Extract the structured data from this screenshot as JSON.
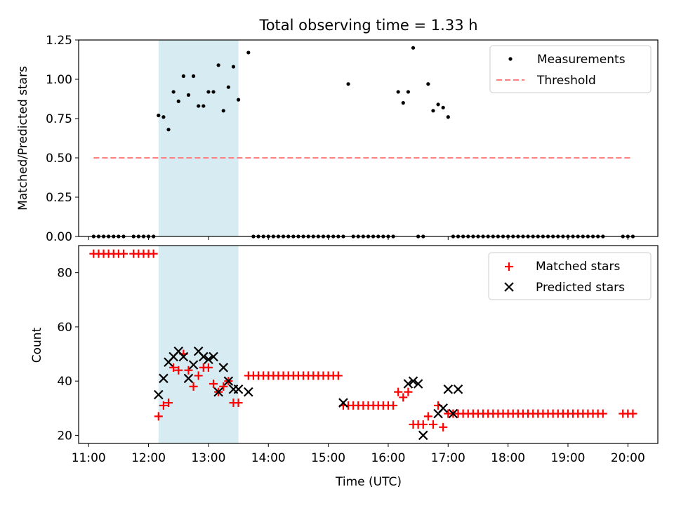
{
  "figure": {
    "title": "Total observing time = 1.33 h"
  },
  "chart_data": [
    {
      "type": "scatter",
      "ylabel": "Matched/Predicted stars",
      "xlim": [
        "10:50",
        "20:30"
      ],
      "ylim": [
        0,
        1.25
      ],
      "y_ticks": [
        0.0,
        0.25,
        0.5,
        0.75,
        1.0,
        1.25
      ],
      "y_tick_labels": [
        "0.00",
        "0.25",
        "0.50",
        "0.75",
        "1.00",
        "1.25"
      ],
      "shaded_interval": [
        "12:10",
        "13:30"
      ],
      "shaded_color": "#add8e6",
      "legend": {
        "position": "upper right",
        "entries": [
          "Measurements",
          "Threshold"
        ]
      },
      "series": [
        {
          "name": "Measurements",
          "color": "#000000",
          "marker": "dot",
          "x": [
            "11:05",
            "11:10",
            "11:15",
            "11:20",
            "11:25",
            "11:30",
            "11:35",
            "11:45",
            "11:50",
            "11:55",
            "12:00",
            "12:05",
            "12:10",
            "12:15",
            "12:20",
            "12:25",
            "12:30",
            "12:35",
            "12:40",
            "12:45",
            "12:50",
            "12:55",
            "13:00",
            "13:05",
            "13:10",
            "13:15",
            "13:20",
            "13:25",
            "13:30",
            "13:40",
            "13:45",
            "13:50",
            "13:55",
            "14:00",
            "14:05",
            "14:10",
            "14:15",
            "14:20",
            "14:25",
            "14:30",
            "14:35",
            "14:40",
            "14:45",
            "14:50",
            "14:55",
            "15:00",
            "15:05",
            "15:10",
            "15:15",
            "15:20",
            "15:25",
            "15:30",
            "15:35",
            "15:40",
            "15:45",
            "15:50",
            "15:55",
            "16:00",
            "16:05",
            "16:10",
            "16:15",
            "16:20",
            "16:25",
            "16:30",
            "16:35",
            "16:40",
            "16:45",
            "16:50",
            "16:55",
            "17:00",
            "17:05",
            "17:10",
            "17:15",
            "17:20",
            "17:25",
            "17:30",
            "17:35",
            "17:40",
            "17:45",
            "17:50",
            "17:55",
            "18:00",
            "18:05",
            "18:10",
            "18:15",
            "18:20",
            "18:25",
            "18:30",
            "18:35",
            "18:40",
            "18:45",
            "18:50",
            "18:55",
            "19:00",
            "19:05",
            "19:10",
            "19:15",
            "19:20",
            "19:25",
            "19:30",
            "19:35",
            "19:55",
            "20:00",
            "20:05"
          ],
          "y": [
            0,
            0,
            0,
            0,
            0,
            0,
            0,
            0,
            0,
            0,
            0,
            0,
            0.77,
            0.76,
            0.68,
            0.92,
            0.86,
            1.02,
            0.9,
            1.02,
            0.83,
            0.83,
            0.92,
            0.92,
            1.09,
            0.8,
            0.95,
            1.08,
            0.87,
            1.17,
            0,
            0,
            0,
            0,
            0,
            0,
            0,
            0,
            0,
            0,
            0,
            0,
            0,
            0,
            0,
            0,
            0,
            0,
            0,
            0.97,
            0,
            0,
            0,
            0,
            0,
            0,
            0,
            0,
            0,
            0.92,
            0.85,
            0.92,
            1.2,
            0,
            0,
            0.97,
            0.8,
            0.84,
            0.82,
            0.76,
            0,
            0,
            0,
            0,
            0,
            0,
            0,
            0,
            0,
            0,
            0,
            0,
            0,
            0,
            0,
            0,
            0,
            0,
            0,
            0,
            0,
            0,
            0,
            0,
            0,
            0,
            0,
            0,
            0,
            0,
            0,
            0,
            0,
            0
          ]
        },
        {
          "name": "Threshold",
          "color": "#ff8080",
          "style": "dashed",
          "x": [
            "11:05",
            "20:05"
          ],
          "y": [
            0.5,
            0.5
          ]
        }
      ]
    },
    {
      "type": "scatter",
      "ylabel": "Count",
      "xlabel": "Time (UTC)",
      "xlim": [
        "10:50",
        "20:30"
      ],
      "ylim": [
        17,
        90
      ],
      "y_ticks": [
        20,
        40,
        60,
        80
      ],
      "y_tick_labels": [
        "20",
        "40",
        "60",
        "80"
      ],
      "x_ticks": [
        "11:00",
        "12:00",
        "13:00",
        "14:00",
        "15:00",
        "16:00",
        "17:00",
        "18:00",
        "19:00",
        "20:00"
      ],
      "x_tick_labels": [
        "11:00",
        "12:00",
        "13:00",
        "14:00",
        "15:00",
        "16:00",
        "17:00",
        "18:00",
        "19:00",
        "20:00"
      ],
      "shaded_interval": [
        "12:10",
        "13:30"
      ],
      "shaded_color": "#add8e6",
      "legend": {
        "position": "upper right",
        "entries": [
          "Matched stars",
          "Predicted stars"
        ]
      },
      "series": [
        {
          "name": "Matched stars",
          "color": "#ff0000",
          "marker": "plus",
          "x": [
            "11:05",
            "11:10",
            "11:15",
            "11:20",
            "11:25",
            "11:30",
            "11:35",
            "11:45",
            "11:50",
            "11:55",
            "12:00",
            "12:05",
            "12:10",
            "12:15",
            "12:20",
            "12:25",
            "12:30",
            "12:35",
            "12:40",
            "12:45",
            "12:50",
            "12:55",
            "13:00",
            "13:05",
            "13:10",
            "13:15",
            "13:20",
            "13:25",
            "13:30",
            "13:40",
            "13:45",
            "13:50",
            "13:55",
            "14:00",
            "14:05",
            "14:10",
            "14:15",
            "14:20",
            "14:25",
            "14:30",
            "14:35",
            "14:40",
            "14:45",
            "14:50",
            "14:55",
            "15:00",
            "15:05",
            "15:10",
            "15:15",
            "15:20",
            "15:25",
            "15:30",
            "15:35",
            "15:40",
            "15:45",
            "15:50",
            "15:55",
            "16:00",
            "16:05",
            "16:10",
            "16:15",
            "16:20",
            "16:25",
            "16:30",
            "16:35",
            "16:40",
            "16:45",
            "16:50",
            "16:55",
            "17:00",
            "17:05",
            "17:10",
            "17:15",
            "17:20",
            "17:25",
            "17:30",
            "17:35",
            "17:40",
            "17:45",
            "17:50",
            "17:55",
            "18:00",
            "18:05",
            "18:10",
            "18:15",
            "18:20",
            "18:25",
            "18:30",
            "18:35",
            "18:40",
            "18:45",
            "18:50",
            "18:55",
            "19:00",
            "19:05",
            "19:10",
            "19:15",
            "19:20",
            "19:25",
            "19:30",
            "19:35",
            "19:55",
            "20:00",
            "20:05"
          ],
          "y": [
            87,
            87,
            87,
            87,
            87,
            87,
            87,
            87,
            87,
            87,
            87,
            87,
            27,
            31,
            32,
            45,
            44,
            50,
            44,
            38,
            42,
            45,
            45,
            39,
            36,
            38,
            40,
            32,
            32,
            42,
            42,
            42,
            42,
            42,
            42,
            42,
            42,
            42,
            42,
            42,
            42,
            42,
            42,
            42,
            42,
            42,
            42,
            42,
            31,
            31,
            31,
            31,
            31,
            31,
            31,
            31,
            31,
            31,
            31,
            36,
            34,
            36,
            24,
            24,
            24,
            27,
            24,
            31,
            23,
            28,
            28,
            28,
            28,
            28,
            28,
            28,
            28,
            28,
            28,
            28,
            28,
            28,
            28,
            28,
            28,
            28,
            28,
            28,
            28,
            28,
            28,
            28,
            28,
            28,
            28,
            28,
            28,
            28,
            28,
            28,
            28,
            28,
            28,
            28
          ]
        },
        {
          "name": "Predicted stars",
          "color": "#000000",
          "marker": "x",
          "x": [
            "12:10",
            "12:15",
            "12:20",
            "12:25",
            "12:30",
            "12:35",
            "12:40",
            "12:45",
            "12:50",
            "12:55",
            "13:00",
            "13:05",
            "13:10",
            "13:15",
            "13:20",
            "13:25",
            "13:30",
            "13:40",
            "15:15",
            "16:20",
            "16:25",
            "16:30",
            "16:35",
            "16:50",
            "16:55",
            "17:00",
            "17:05",
            "17:10"
          ],
          "y": [
            35,
            41,
            47,
            49,
            51,
            49,
            41,
            46,
            51,
            49,
            48,
            49,
            36,
            45,
            40,
            37,
            37,
            36,
            32,
            39,
            40,
            39,
            20,
            28,
            30,
            37,
            28,
            37
          ]
        }
      ]
    }
  ]
}
